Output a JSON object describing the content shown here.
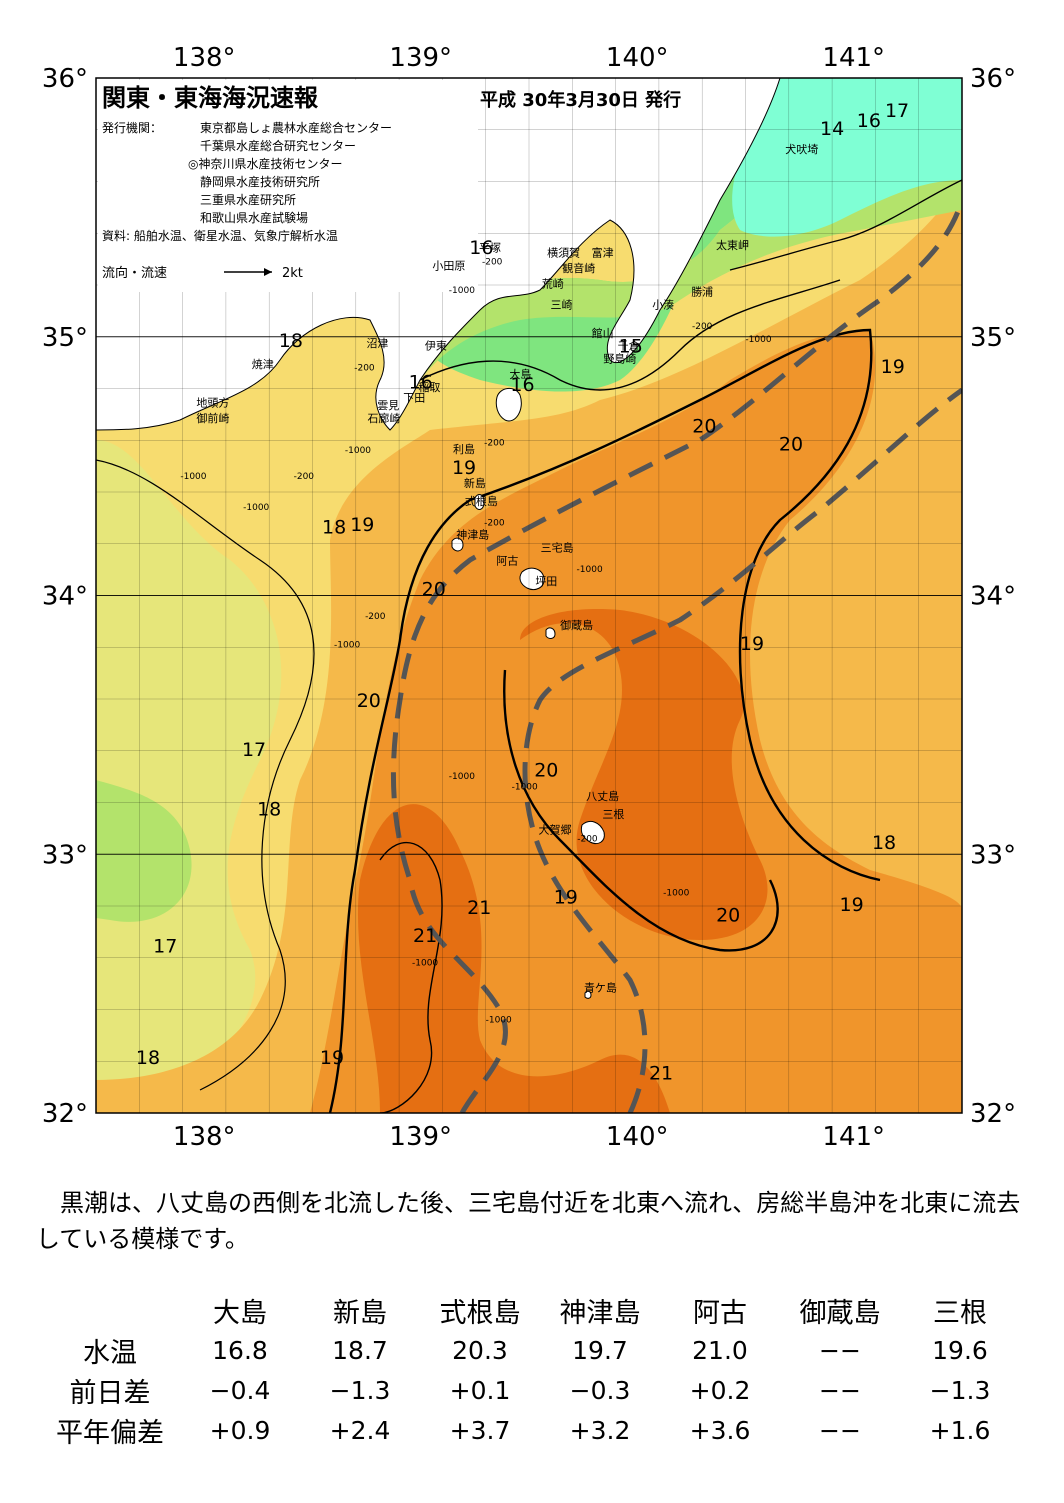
{
  "title": "関東・東海海況速報",
  "issue_date": "平成 30年3月30日 発行",
  "publisher_label": "発行機関：",
  "publishers": [
    "東京都島しょ農林水産総合センター",
    "千葉県水産総合研究センター",
    "◎神奈川県水産技術センター",
    "静岡県水産技術研究所",
    "三重県水産研究所",
    "和歌山県水産試験場"
  ],
  "sources": "資料: 船舶水温、衛星水温、気象庁解析水温",
  "legend": {
    "label": "流向・流速",
    "scale": "2kt"
  },
  "axes": {
    "lon_ticks": [
      "138°",
      "139°",
      "140°",
      "141°"
    ],
    "lat_ticks": [
      "36°",
      "35°",
      "34°",
      "33°",
      "32°"
    ],
    "lon_range": [
      137.5,
      141.5
    ],
    "lat_range": [
      32,
      36
    ]
  },
  "colors": {
    "t14": "#7fffd4",
    "t15": "#7fe57f",
    "t16": "#b3e36b",
    "t17": "#e6e67a",
    "t18": "#f7dc6f",
    "t19": "#f5b94a",
    "t20": "#f0952b",
    "t21": "#e56f12",
    "land": "#ffffff",
    "kuroshio_axis": "#555555"
  },
  "places": [
    {
      "name": "犬吠埼",
      "lon": 140.76,
      "lat": 35.71
    },
    {
      "name": "太東岬",
      "lon": 140.44,
      "lat": 35.34
    },
    {
      "name": "勝浦",
      "lon": 140.3,
      "lat": 35.16
    },
    {
      "name": "小湊",
      "lon": 140.12,
      "lat": 35.11
    },
    {
      "name": "富津",
      "lon": 139.84,
      "lat": 35.31
    },
    {
      "name": "観音崎",
      "lon": 139.73,
      "lat": 35.25
    },
    {
      "name": "横須賀",
      "lon": 139.66,
      "lat": 35.31
    },
    {
      "name": "平塚",
      "lon": 139.32,
      "lat": 35.33
    },
    {
      "name": "小田原",
      "lon": 139.13,
      "lat": 35.26
    },
    {
      "name": "荒崎",
      "lon": 139.61,
      "lat": 35.19
    },
    {
      "name": "三崎",
      "lon": 139.65,
      "lat": 35.11
    },
    {
      "name": "館山",
      "lon": 139.84,
      "lat": 35.0
    },
    {
      "name": "千倉",
      "lon": 139.96,
      "lat": 34.95
    },
    {
      "name": "野島崎",
      "lon": 139.92,
      "lat": 34.9
    },
    {
      "name": "沼津",
      "lon": 138.8,
      "lat": 34.96
    },
    {
      "name": "伊東",
      "lon": 139.07,
      "lat": 34.95
    },
    {
      "name": "焼津",
      "lon": 138.27,
      "lat": 34.88
    },
    {
      "name": "稲取",
      "lon": 139.04,
      "lat": 34.79
    },
    {
      "name": "下田",
      "lon": 138.97,
      "lat": 34.75
    },
    {
      "name": "雲見",
      "lon": 138.85,
      "lat": 34.72
    },
    {
      "name": "石廊崎",
      "lon": 138.83,
      "lat": 34.67
    },
    {
      "name": "地頭方",
      "lon": 138.04,
      "lat": 34.73
    },
    {
      "name": "御前崎",
      "lon": 138.04,
      "lat": 34.67
    },
    {
      "name": "大島",
      "lon": 139.46,
      "lat": 34.84
    },
    {
      "name": "利島",
      "lon": 139.2,
      "lat": 34.55
    },
    {
      "name": "新島",
      "lon": 139.25,
      "lat": 34.42
    },
    {
      "name": "式根島",
      "lon": 139.28,
      "lat": 34.35
    },
    {
      "name": "神津島",
      "lon": 139.24,
      "lat": 34.22
    },
    {
      "name": "三宅島",
      "lon": 139.63,
      "lat": 34.17
    },
    {
      "name": "阿古",
      "lon": 139.4,
      "lat": 34.12
    },
    {
      "name": "坪田",
      "lon": 139.58,
      "lat": 34.04
    },
    {
      "name": "御蔵島",
      "lon": 139.72,
      "lat": 33.87
    },
    {
      "name": "八丈島",
      "lon": 139.84,
      "lat": 33.21
    },
    {
      "name": "三根",
      "lon": 139.89,
      "lat": 33.14
    },
    {
      "name": "大賀郷",
      "lon": 139.62,
      "lat": 33.08
    },
    {
      "name": "青ケ島",
      "lon": 139.83,
      "lat": 32.47
    }
  ],
  "isotherm_labels": [
    {
      "text": "14",
      "lon": 140.9,
      "lat": 35.78
    },
    {
      "text": "16",
      "lon": 141.07,
      "lat": 35.81
    },
    {
      "text": "17",
      "lon": 141.2,
      "lat": 35.85
    },
    {
      "text": "16",
      "lon": 139.28,
      "lat": 35.32
    },
    {
      "text": "15",
      "lon": 139.97,
      "lat": 34.94
    },
    {
      "text": "16",
      "lon": 139.0,
      "lat": 34.8
    },
    {
      "text": "16",
      "lon": 139.47,
      "lat": 34.79
    },
    {
      "text": "18",
      "lon": 138.4,
      "lat": 34.96
    },
    {
      "text": "19",
      "lon": 141.18,
      "lat": 34.86
    },
    {
      "text": "20",
      "lon": 140.31,
      "lat": 34.63
    },
    {
      "text": "20",
      "lon": 140.71,
      "lat": 34.56
    },
    {
      "text": "19",
      "lon": 139.2,
      "lat": 34.47
    },
    {
      "text": "18",
      "lon": 138.6,
      "lat": 34.24
    },
    {
      "text": "19",
      "lon": 138.73,
      "lat": 34.25
    },
    {
      "text": "20",
      "lon": 139.06,
      "lat": 34.0
    },
    {
      "text": "19",
      "lon": 140.53,
      "lat": 33.79
    },
    {
      "text": "20",
      "lon": 138.76,
      "lat": 33.57
    },
    {
      "text": "17",
      "lon": 138.23,
      "lat": 33.38
    },
    {
      "text": "20",
      "lon": 139.58,
      "lat": 33.3
    },
    {
      "text": "18",
      "lon": 138.3,
      "lat": 33.15
    },
    {
      "text": "18",
      "lon": 141.14,
      "lat": 33.02
    },
    {
      "text": "19",
      "lon": 139.67,
      "lat": 32.81
    },
    {
      "text": "21",
      "lon": 139.27,
      "lat": 32.77
    },
    {
      "text": "19",
      "lon": 140.99,
      "lat": 32.78
    },
    {
      "text": "20",
      "lon": 140.42,
      "lat": 32.74
    },
    {
      "text": "21",
      "lon": 139.02,
      "lat": 32.66
    },
    {
      "text": "17",
      "lon": 137.82,
      "lat": 32.62
    },
    {
      "text": "19",
      "lon": 138.59,
      "lat": 32.19
    },
    {
      "text": "18",
      "lon": 137.74,
      "lat": 32.19
    },
    {
      "text": "21",
      "lon": 140.11,
      "lat": 32.13
    }
  ],
  "depth_labels": [
    {
      "text": "-200",
      "lon": 139.33,
      "lat": 35.28
    },
    {
      "text": "-1000",
      "lon": 139.19,
      "lat": 35.17
    },
    {
      "text": "-200",
      "lon": 140.3,
      "lat": 35.03
    },
    {
      "text": "-1000",
      "lon": 140.56,
      "lat": 34.98
    },
    {
      "text": "-200",
      "lon": 138.74,
      "lat": 34.87
    },
    {
      "text": "-1000",
      "lon": 138.71,
      "lat": 34.55
    },
    {
      "text": "-200",
      "lon": 138.46,
      "lat": 34.45
    },
    {
      "text": "-1000",
      "lon": 137.95,
      "lat": 34.45
    },
    {
      "text": "-1000",
      "lon": 138.24,
      "lat": 34.33
    },
    {
      "text": "-200",
      "lon": 139.34,
      "lat": 34.58
    },
    {
      "text": "-200",
      "lon": 139.34,
      "lat": 34.27
    },
    {
      "text": "-1000",
      "lon": 139.78,
      "lat": 34.09
    },
    {
      "text": "-200",
      "lon": 138.79,
      "lat": 33.91
    },
    {
      "text": "-1000",
      "lon": 138.66,
      "lat": 33.8
    },
    {
      "text": "-1000",
      "lon": 139.19,
      "lat": 33.29
    },
    {
      "text": "-1000",
      "lon": 139.48,
      "lat": 33.25
    },
    {
      "text": "-200",
      "lon": 139.77,
      "lat": 33.05
    },
    {
      "text": "-1000",
      "lon": 140.18,
      "lat": 32.84
    },
    {
      "text": "-1000",
      "lon": 139.02,
      "lat": 32.57
    },
    {
      "text": "-1000",
      "lon": 139.36,
      "lat": 32.35
    }
  ],
  "summary": "黒潮は、八丈島の西側を北流した後、三宅島付近を北東へ流れ、房総半島沖を北東に流去している模様です。",
  "table": {
    "stations": [
      "大島",
      "新島",
      "式根島",
      "神津島",
      "阿古",
      "御蔵島",
      "三根"
    ],
    "rows": [
      {
        "label": "水温",
        "values": [
          "16.8",
          "18.7",
          "20.3",
          "19.7",
          "21.0",
          "−−",
          "19.6"
        ]
      },
      {
        "label": "前日差",
        "values": [
          "−0.4",
          "−1.3",
          "+0.1",
          "−0.3",
          "+0.2",
          "−−",
          "−1.3"
        ]
      },
      {
        "label": "平年偏差",
        "values": [
          "+0.9",
          "+2.4",
          "+3.7",
          "+3.2",
          "+3.6",
          "−−",
          "+1.6"
        ]
      }
    ]
  }
}
